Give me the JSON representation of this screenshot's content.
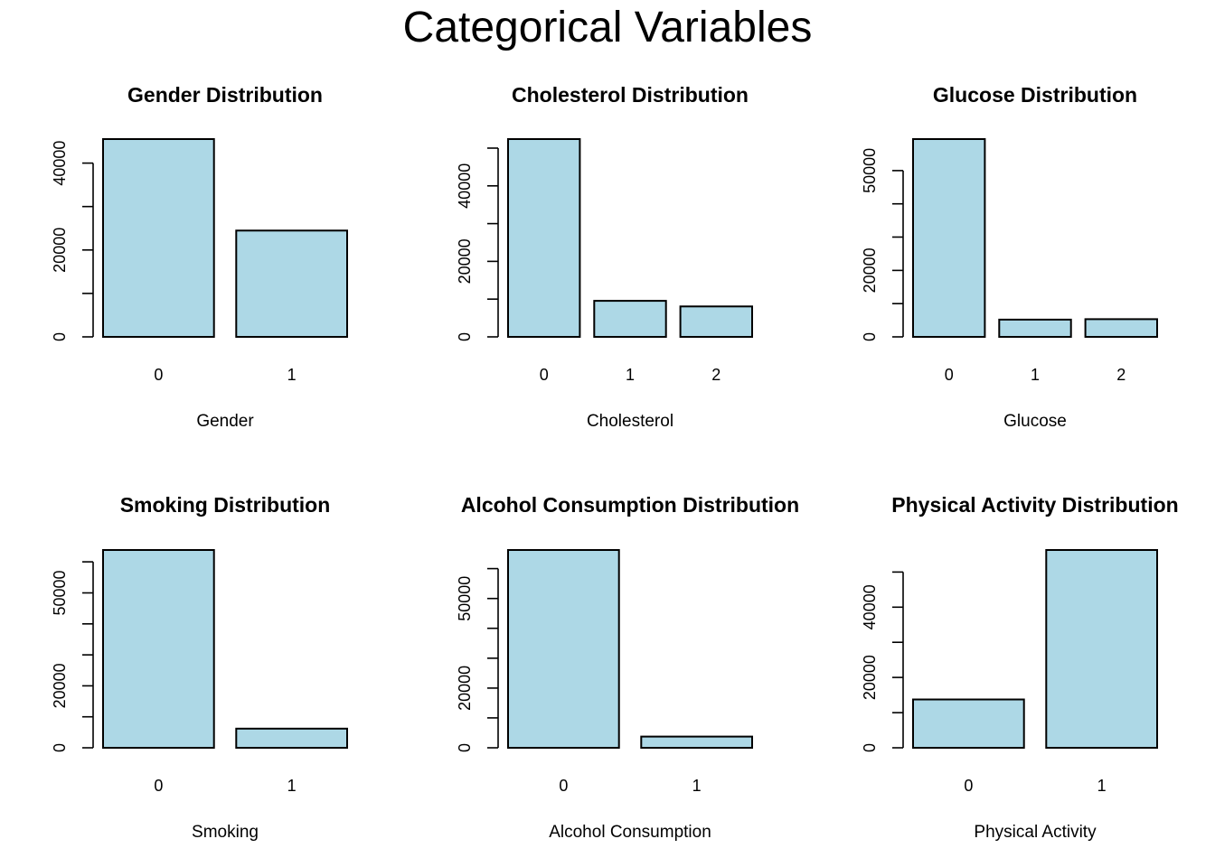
{
  "title": "Categorical Variables",
  "bar_color": "#add8e6",
  "chart_data": [
    {
      "type": "bar",
      "title": "Gender Distribution",
      "xlabel": "Gender",
      "ylabel": "",
      "categories": [
        "0",
        "1"
      ],
      "values": [
        45530,
        24470
      ],
      "ylim": [
        0,
        45530
      ],
      "yticks": [
        0,
        10000,
        20000,
        30000,
        40000
      ],
      "ytick_labels": [
        "0",
        "",
        "20000",
        "",
        "40000"
      ]
    },
    {
      "type": "bar",
      "title": "Cholesterol Distribution",
      "xlabel": "Cholesterol",
      "ylabel": "",
      "categories": [
        "0",
        "1",
        "2"
      ],
      "values": [
        52385,
        9549,
        8066
      ],
      "ylim": [
        0,
        52385
      ],
      "yticks": [
        0,
        10000,
        20000,
        30000,
        40000,
        50000
      ],
      "ytick_labels": [
        "0",
        "",
        "20000",
        "",
        "40000",
        ""
      ]
    },
    {
      "type": "bar",
      "title": "Glucose Distribution",
      "xlabel": "Glucose",
      "ylabel": "",
      "categories": [
        "0",
        "1",
        "2"
      ],
      "values": [
        59479,
        5190,
        5331
      ],
      "ylim": [
        0,
        59479
      ],
      "yticks": [
        0,
        10000,
        20000,
        30000,
        40000,
        50000
      ],
      "ytick_labels": [
        "0",
        "",
        "20000",
        "",
        "",
        "50000"
      ]
    },
    {
      "type": "bar",
      "title": "Smoking Distribution",
      "xlabel": "Smoking",
      "ylabel": "",
      "categories": [
        "0",
        "1"
      ],
      "values": [
        63831,
        6169
      ],
      "ylim": [
        0,
        63831
      ],
      "yticks": [
        0,
        10000,
        20000,
        30000,
        40000,
        50000,
        60000
      ],
      "ytick_labels": [
        "0",
        "",
        "20000",
        "",
        "",
        "50000",
        ""
      ]
    },
    {
      "type": "bar",
      "title": "Alcohol Consumption Distribution",
      "xlabel": "Alcohol Consumption",
      "ylabel": "",
      "categories": [
        "0",
        "1"
      ],
      "values": [
        66236,
        3764
      ],
      "ylim": [
        0,
        66236
      ],
      "yticks": [
        0,
        10000,
        20000,
        30000,
        40000,
        50000,
        60000
      ],
      "ytick_labels": [
        "0",
        "",
        "20000",
        "",
        "",
        "50000",
        ""
      ]
    },
    {
      "type": "bar",
      "title": "Physical Activity Distribution",
      "xlabel": "Physical Activity",
      "ylabel": "",
      "categories": [
        "0",
        "1"
      ],
      "values": [
        13739,
        56261
      ],
      "ylim": [
        0,
        56261
      ],
      "yticks": [
        0,
        10000,
        20000,
        30000,
        40000,
        50000
      ],
      "ytick_labels": [
        "0",
        "",
        "20000",
        "",
        "40000",
        ""
      ]
    }
  ]
}
